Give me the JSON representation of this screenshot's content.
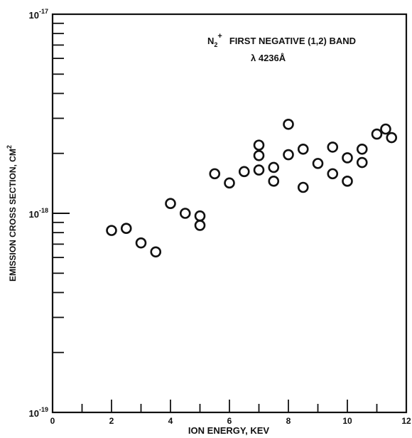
{
  "chart_data": {
    "type": "scatter",
    "title_line1_main": "N",
    "title_line1_sub": "2",
    "title_line1_sup": "+",
    "title_line1_rest": "FIRST NEGATIVE (1,2) BAND",
    "title_line2": "λ 4236Å",
    "xlabel": "ION ENERGY, KEV",
    "ylabel": "EMISSION CROSS SECTION, CM",
    "ylabel_sup": "2",
    "xlim": [
      0,
      12
    ],
    "ylim": [
      1e-19,
      1e-17
    ],
    "yscale": "log",
    "x_ticks": [
      "0",
      "2",
      "4",
      "6",
      "8",
      "10",
      "12"
    ],
    "y_tick_labels": [
      {
        "base": "10",
        "exp": "-19",
        "value": 1e-19
      },
      {
        "base": "10",
        "exp": "-18",
        "value": 1e-18
      },
      {
        "base": "10",
        "exp": "-17",
        "value": 1e-17
      }
    ],
    "points": [
      {
        "x": 2.0,
        "y": 8.2e-19
      },
      {
        "x": 2.5,
        "y": 8.4e-19
      },
      {
        "x": 3.0,
        "y": 7.1e-19
      },
      {
        "x": 3.5,
        "y": 6.4e-19
      },
      {
        "x": 4.0,
        "y": 1.12e-18
      },
      {
        "x": 4.5,
        "y": 1e-18
      },
      {
        "x": 5.0,
        "y": 9.7e-19
      },
      {
        "x": 5.0,
        "y": 8.7e-19
      },
      {
        "x": 5.5,
        "y": 1.58e-18
      },
      {
        "x": 6.0,
        "y": 1.42e-18
      },
      {
        "x": 6.5,
        "y": 1.62e-18
      },
      {
        "x": 7.0,
        "y": 1.65e-18
      },
      {
        "x": 7.0,
        "y": 1.95e-18
      },
      {
        "x": 7.0,
        "y": 2.2e-18
      },
      {
        "x": 7.5,
        "y": 1.45e-18
      },
      {
        "x": 7.5,
        "y": 1.7e-18
      },
      {
        "x": 8.0,
        "y": 1.97e-18
      },
      {
        "x": 8.0,
        "y": 2.8e-18
      },
      {
        "x": 8.5,
        "y": 1.35e-18
      },
      {
        "x": 8.5,
        "y": 2.1e-18
      },
      {
        "x": 9.0,
        "y": 1.78e-18
      },
      {
        "x": 9.5,
        "y": 1.58e-18
      },
      {
        "x": 9.5,
        "y": 2.15e-18
      },
      {
        "x": 10.0,
        "y": 1.45e-18
      },
      {
        "x": 10.0,
        "y": 1.9e-18
      },
      {
        "x": 10.5,
        "y": 1.8e-18
      },
      {
        "x": 10.5,
        "y": 2.1e-18
      },
      {
        "x": 11.0,
        "y": 2.5e-18
      },
      {
        "x": 11.3,
        "y": 2.65e-18
      },
      {
        "x": 11.5,
        "y": 2.4e-18
      }
    ],
    "grid": false,
    "legend": "none"
  }
}
